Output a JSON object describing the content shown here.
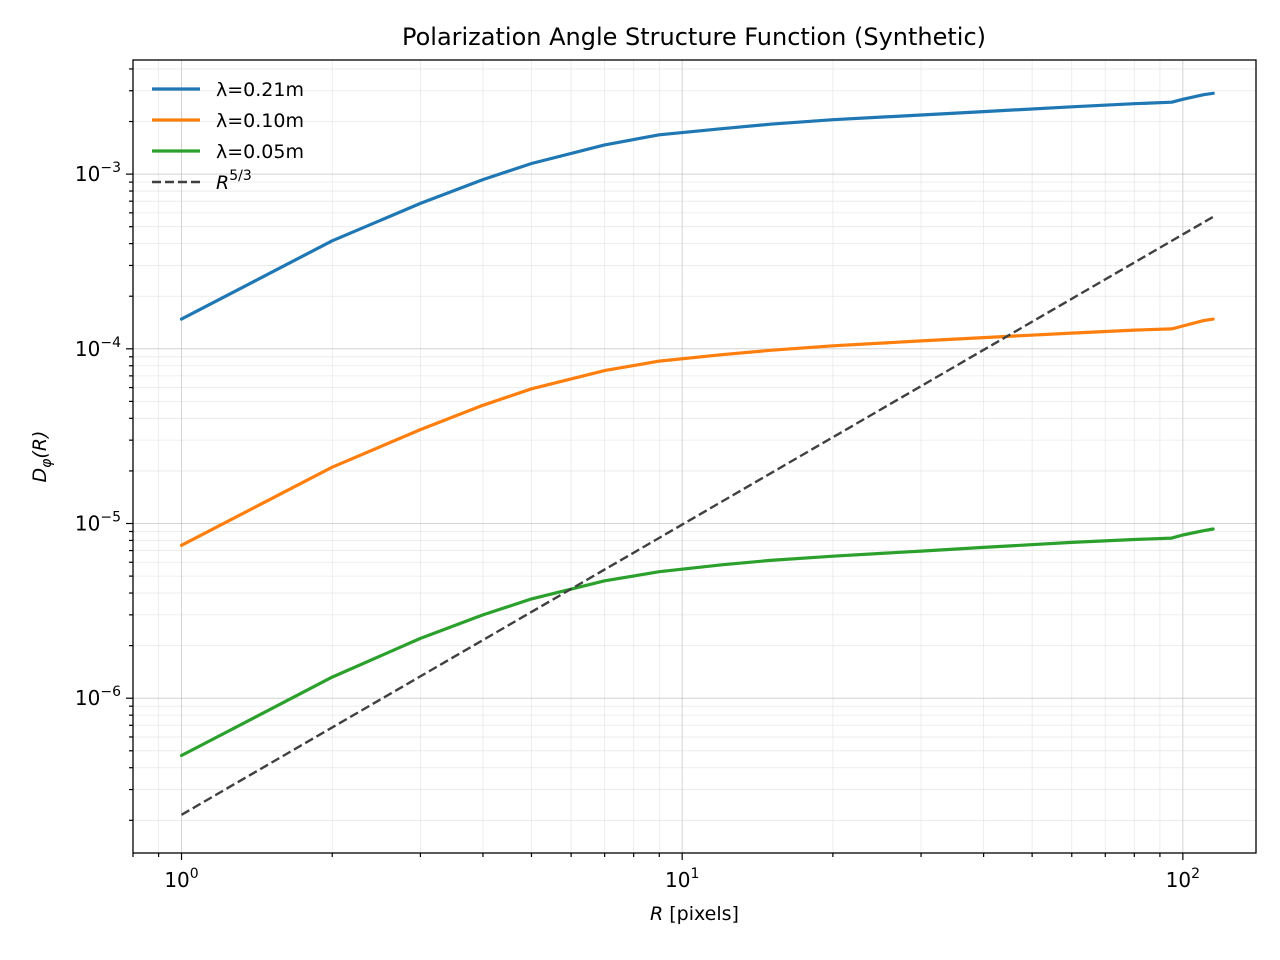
{
  "chart_data": {
    "type": "line",
    "title": "Polarization Angle Structure Function (Synthetic)",
    "xlabel": {
      "math": "R",
      "text": " [pixels]"
    },
    "ylabel": {
      "math": "D",
      "sub": "φ",
      "suffix": "(R)"
    },
    "xscale": "log",
    "yscale": "log",
    "xlim": [
      0.8,
      140
    ],
    "ylim": [
      1.3e-07,
      0.0045
    ],
    "grid": {
      "major": true,
      "minor": true
    },
    "legend": {
      "position": "top-left"
    },
    "x_ticks": [
      {
        "value": 1,
        "base": "10",
        "exp": "0"
      },
      {
        "value": 10,
        "base": "10",
        "exp": "1"
      },
      {
        "value": 100,
        "base": "10",
        "exp": "2"
      }
    ],
    "y_ticks": [
      {
        "value": 1e-06,
        "base": "10",
        "exp": "−6"
      },
      {
        "value": 1e-05,
        "base": "10",
        "exp": "−5"
      },
      {
        "value": 0.0001,
        "base": "10",
        "exp": "−4"
      },
      {
        "value": 0.001,
        "base": "10",
        "exp": "−3"
      }
    ],
    "series": [
      {
        "name": "λ=0.21m",
        "color": "#1f77b4",
        "dashed": false,
        "x": [
          1,
          2,
          3,
          4,
          5,
          7,
          9,
          12,
          15,
          20,
          30,
          40,
          60,
          80,
          95,
          100,
          110,
          115
        ],
        "y": [
          0.000148,
          0.000415,
          0.00068,
          0.00093,
          0.00115,
          0.00147,
          0.00168,
          0.00182,
          0.00193,
          0.00205,
          0.00218,
          0.00228,
          0.00243,
          0.00253,
          0.00258,
          0.00268,
          0.00285,
          0.0029
        ]
      },
      {
        "name": "λ=0.10m",
        "color": "#ff7f0e",
        "dashed": false,
        "x": [
          1,
          2,
          3,
          4,
          5,
          7,
          9,
          12,
          15,
          20,
          30,
          40,
          60,
          80,
          95,
          100,
          110,
          115
        ],
        "y": [
          7.5e-06,
          2.1e-05,
          3.45e-05,
          4.75e-05,
          5.9e-05,
          7.5e-05,
          8.5e-05,
          9.25e-05,
          9.8e-05,
          0.000104,
          0.000111,
          0.000116,
          0.000123,
          0.000128,
          0.00013,
          0.000135,
          0.000145,
          0.000148
        ]
      },
      {
        "name": "λ=0.05m",
        "color": "#2ca02c",
        "dashed": false,
        "x": [
          1,
          2,
          3,
          4,
          5,
          7,
          9,
          12,
          15,
          20,
          30,
          40,
          60,
          80,
          95,
          100,
          110,
          115
        ],
        "y": [
          4.7e-07,
          1.32e-06,
          2.2e-06,
          3e-06,
          3.7e-06,
          4.7e-06,
          5.3e-06,
          5.8e-06,
          6.15e-06,
          6.5e-06,
          6.95e-06,
          7.3e-06,
          7.8e-06,
          8.1e-06,
          8.25e-06,
          8.6e-06,
          9.1e-06,
          9.3e-06
        ]
      },
      {
        "name": "R5/3",
        "legend_label": {
          "base": "R",
          "sup": "5/3"
        },
        "color": "#404040",
        "dashed": true,
        "x": [
          1,
          115
        ],
        "y": [
          2.15e-07,
          0.00057
        ]
      }
    ]
  }
}
